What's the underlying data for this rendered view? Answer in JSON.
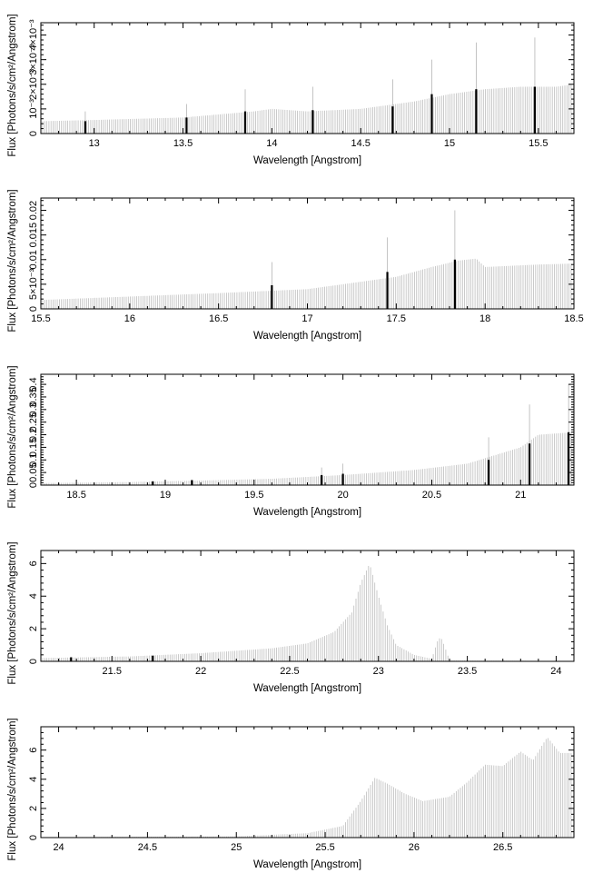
{
  "chart_data": [
    {
      "type": "bar",
      "xlabel": "Wavelength [Angstrom]",
      "ylabel": "Flux [Photons/s/cm²/Angstrom]",
      "xlim": [
        12.7,
        15.7
      ],
      "ylim": [
        0,
        0.0045
      ],
      "x_ticks": [
        13,
        13.5,
        14,
        14.5,
        15,
        15.5
      ],
      "x_tick_labels": [
        "13",
        "13.5",
        "14",
        "14.5",
        "15",
        "15.5"
      ],
      "y_ticks": [
        0,
        0.001,
        0.002,
        0.003,
        0.004
      ],
      "y_tick_labels": [
        "0",
        "10⁻³",
        "2×10⁻³",
        "3×10⁻³",
        "4×10⁻³"
      ],
      "continuum": {
        "x": [
          12.7,
          13.0,
          13.5,
          13.9,
          14.0,
          14.2,
          14.5,
          14.8,
          15.0,
          15.2,
          15.4,
          15.6,
          15.7
        ],
        "y": [
          0.0005,
          0.00055,
          0.00065,
          0.0009,
          0.001,
          0.0009,
          0.001,
          0.0013,
          0.0016,
          0.0018,
          0.0019,
          0.0019,
          0.002
        ]
      },
      "lines": [
        {
          "x": 12.95,
          "y": 0.0005,
          "err": 0.0009
        },
        {
          "x": 13.52,
          "y": 0.00065,
          "err": 0.0012
        },
        {
          "x": 13.85,
          "y": 0.0009,
          "err": 0.0018
        },
        {
          "x": 14.23,
          "y": 0.00095,
          "err": 0.0019
        },
        {
          "x": 14.68,
          "y": 0.0011,
          "err": 0.0022
        },
        {
          "x": 14.9,
          "y": 0.0016,
          "err": 0.003
        },
        {
          "x": 15.15,
          "y": 0.0018,
          "err": 0.0037
        },
        {
          "x": 15.48,
          "y": 0.0019,
          "err": 0.0039
        }
      ]
    },
    {
      "type": "bar",
      "xlabel": "Wavelength [Angstrom]",
      "ylabel": "Flux [Photons/s/cm²/Angstrom]",
      "xlim": [
        15.5,
        18.5
      ],
      "ylim": [
        0,
        0.0225
      ],
      "x_ticks": [
        15.5,
        16,
        16.5,
        17,
        17.5,
        18,
        18.5
      ],
      "x_tick_labels": [
        "15.5",
        "16",
        "16.5",
        "17",
        "17.5",
        "18",
        "18.5"
      ],
      "y_ticks": [
        0,
        0.005,
        0.01,
        0.015,
        0.02
      ],
      "y_tick_labels": [
        "0",
        "5×10⁻³",
        "0.01",
        "0.015",
        "0.02"
      ],
      "continuum": {
        "x": [
          15.5,
          16.0,
          16.5,
          17.0,
          17.5,
          17.7,
          17.85,
          17.95,
          18.0,
          18.3,
          18.5
        ],
        "y": [
          0.0018,
          0.0025,
          0.0032,
          0.004,
          0.0065,
          0.0085,
          0.0098,
          0.0102,
          0.0085,
          0.009,
          0.0092
        ]
      },
      "lines": [
        {
          "x": 16.8,
          "y": 0.0048,
          "err": 0.0095
        },
        {
          "x": 17.45,
          "y": 0.0075,
          "err": 0.0145
        },
        {
          "x": 17.83,
          "y": 0.01,
          "err": 0.02
        }
      ]
    },
    {
      "type": "bar",
      "xlabel": "Wavelength [Angstrom]",
      "ylabel": "Flux [Photons/s/cm²/Angstrom]",
      "xlim": [
        18.3,
        21.3
      ],
      "ylim": [
        0,
        0.44
      ],
      "x_ticks": [
        18.5,
        19,
        19.5,
        20,
        20.5,
        21
      ],
      "x_tick_labels": [
        "18.5",
        "19",
        "19.5",
        "20",
        "20.5",
        "21"
      ],
      "y_ticks": [
        0,
        0.05,
        0.1,
        0.15,
        0.2,
        0.25,
        0.3,
        0.35,
        0.4
      ],
      "y_tick_labels": [
        "0",
        "0.05",
        "0.1",
        "0.15",
        "0.2",
        "0.25",
        "0.3",
        "0.35",
        "0.4"
      ],
      "continuum": {
        "x": [
          18.3,
          18.8,
          19.2,
          19.6,
          20.0,
          20.4,
          20.7,
          21.0,
          21.1,
          21.3
        ],
        "y": [
          0.008,
          0.012,
          0.018,
          0.025,
          0.04,
          0.06,
          0.085,
          0.15,
          0.2,
          0.21
        ]
      },
      "lines": [
        {
          "x": 18.93,
          "y": 0.015,
          "err": 0.015
        },
        {
          "x": 19.15,
          "y": 0.02,
          "err": 0.02
        },
        {
          "x": 19.88,
          "y": 0.04,
          "err": 0.07
        },
        {
          "x": 20.0,
          "y": 0.045,
          "err": 0.085
        },
        {
          "x": 20.82,
          "y": 0.1,
          "err": 0.19
        },
        {
          "x": 21.05,
          "y": 0.165,
          "err": 0.32
        },
        {
          "x": 21.27,
          "y": 0.21,
          "err": 0.4
        }
      ]
    },
    {
      "type": "bar",
      "xlabel": "Wavelength [Angstrom]",
      "ylabel": "Flux [Photons/s/cm²/Angstrom]",
      "xlim": [
        21.1,
        24.1
      ],
      "ylim": [
        0,
        6.8
      ],
      "x_ticks": [
        21.5,
        22,
        22.5,
        23,
        23.5,
        24
      ],
      "x_tick_labels": [
        "21.5",
        "22",
        "22.5",
        "23",
        "23.5",
        "24"
      ],
      "y_ticks": [
        0,
        2,
        4,
        6
      ],
      "y_tick_labels": [
        "0",
        "2",
        "4",
        "6"
      ],
      "continuum": {
        "x": [
          21.1,
          21.6,
          22.0,
          22.4,
          22.6,
          22.75,
          22.85,
          22.9,
          22.95,
          23.0,
          23.05,
          23.1,
          23.2,
          23.3,
          23.33,
          23.35,
          23.37,
          23.4,
          24.1
        ],
        "y": [
          0.2,
          0.3,
          0.5,
          0.8,
          1.1,
          1.8,
          3.0,
          4.8,
          6.0,
          4.0,
          2.2,
          1.0,
          0.4,
          0.15,
          1.2,
          1.5,
          1.0,
          0.05,
          0.02
        ]
      },
      "lines": [
        {
          "x": 21.27,
          "y": 0.25,
          "err": 0.1
        },
        {
          "x": 21.73,
          "y": 0.35,
          "err": 0.1
        }
      ]
    },
    {
      "type": "bar",
      "xlabel": "Wavelength [Angstrom]",
      "ylabel": "Flux [Photons/s/cm²/Angstrom]",
      "xlim": [
        23.9,
        26.9
      ],
      "ylim": [
        0,
        7.6
      ],
      "x_ticks": [
        24,
        24.5,
        25,
        25.5,
        26,
        26.5
      ],
      "x_tick_labels": [
        "24",
        "24.5",
        "25",
        "25.5",
        "26",
        "26.5"
      ],
      "y_ticks": [
        0,
        2,
        4,
        6
      ],
      "y_tick_labels": [
        "0",
        "2",
        "4",
        "6"
      ],
      "continuum": {
        "x": [
          23.9,
          25.0,
          25.4,
          25.6,
          25.7,
          25.78,
          25.85,
          25.95,
          26.05,
          26.2,
          26.3,
          26.4,
          26.5,
          26.6,
          26.67,
          26.75,
          26.82,
          26.9
        ],
        "y": [
          0.02,
          0.08,
          0.3,
          0.8,
          2.5,
          4.1,
          3.7,
          3.0,
          2.5,
          2.8,
          3.8,
          5.0,
          4.9,
          5.9,
          5.3,
          6.9,
          5.8,
          5.8
        ]
      },
      "lines": []
    }
  ]
}
